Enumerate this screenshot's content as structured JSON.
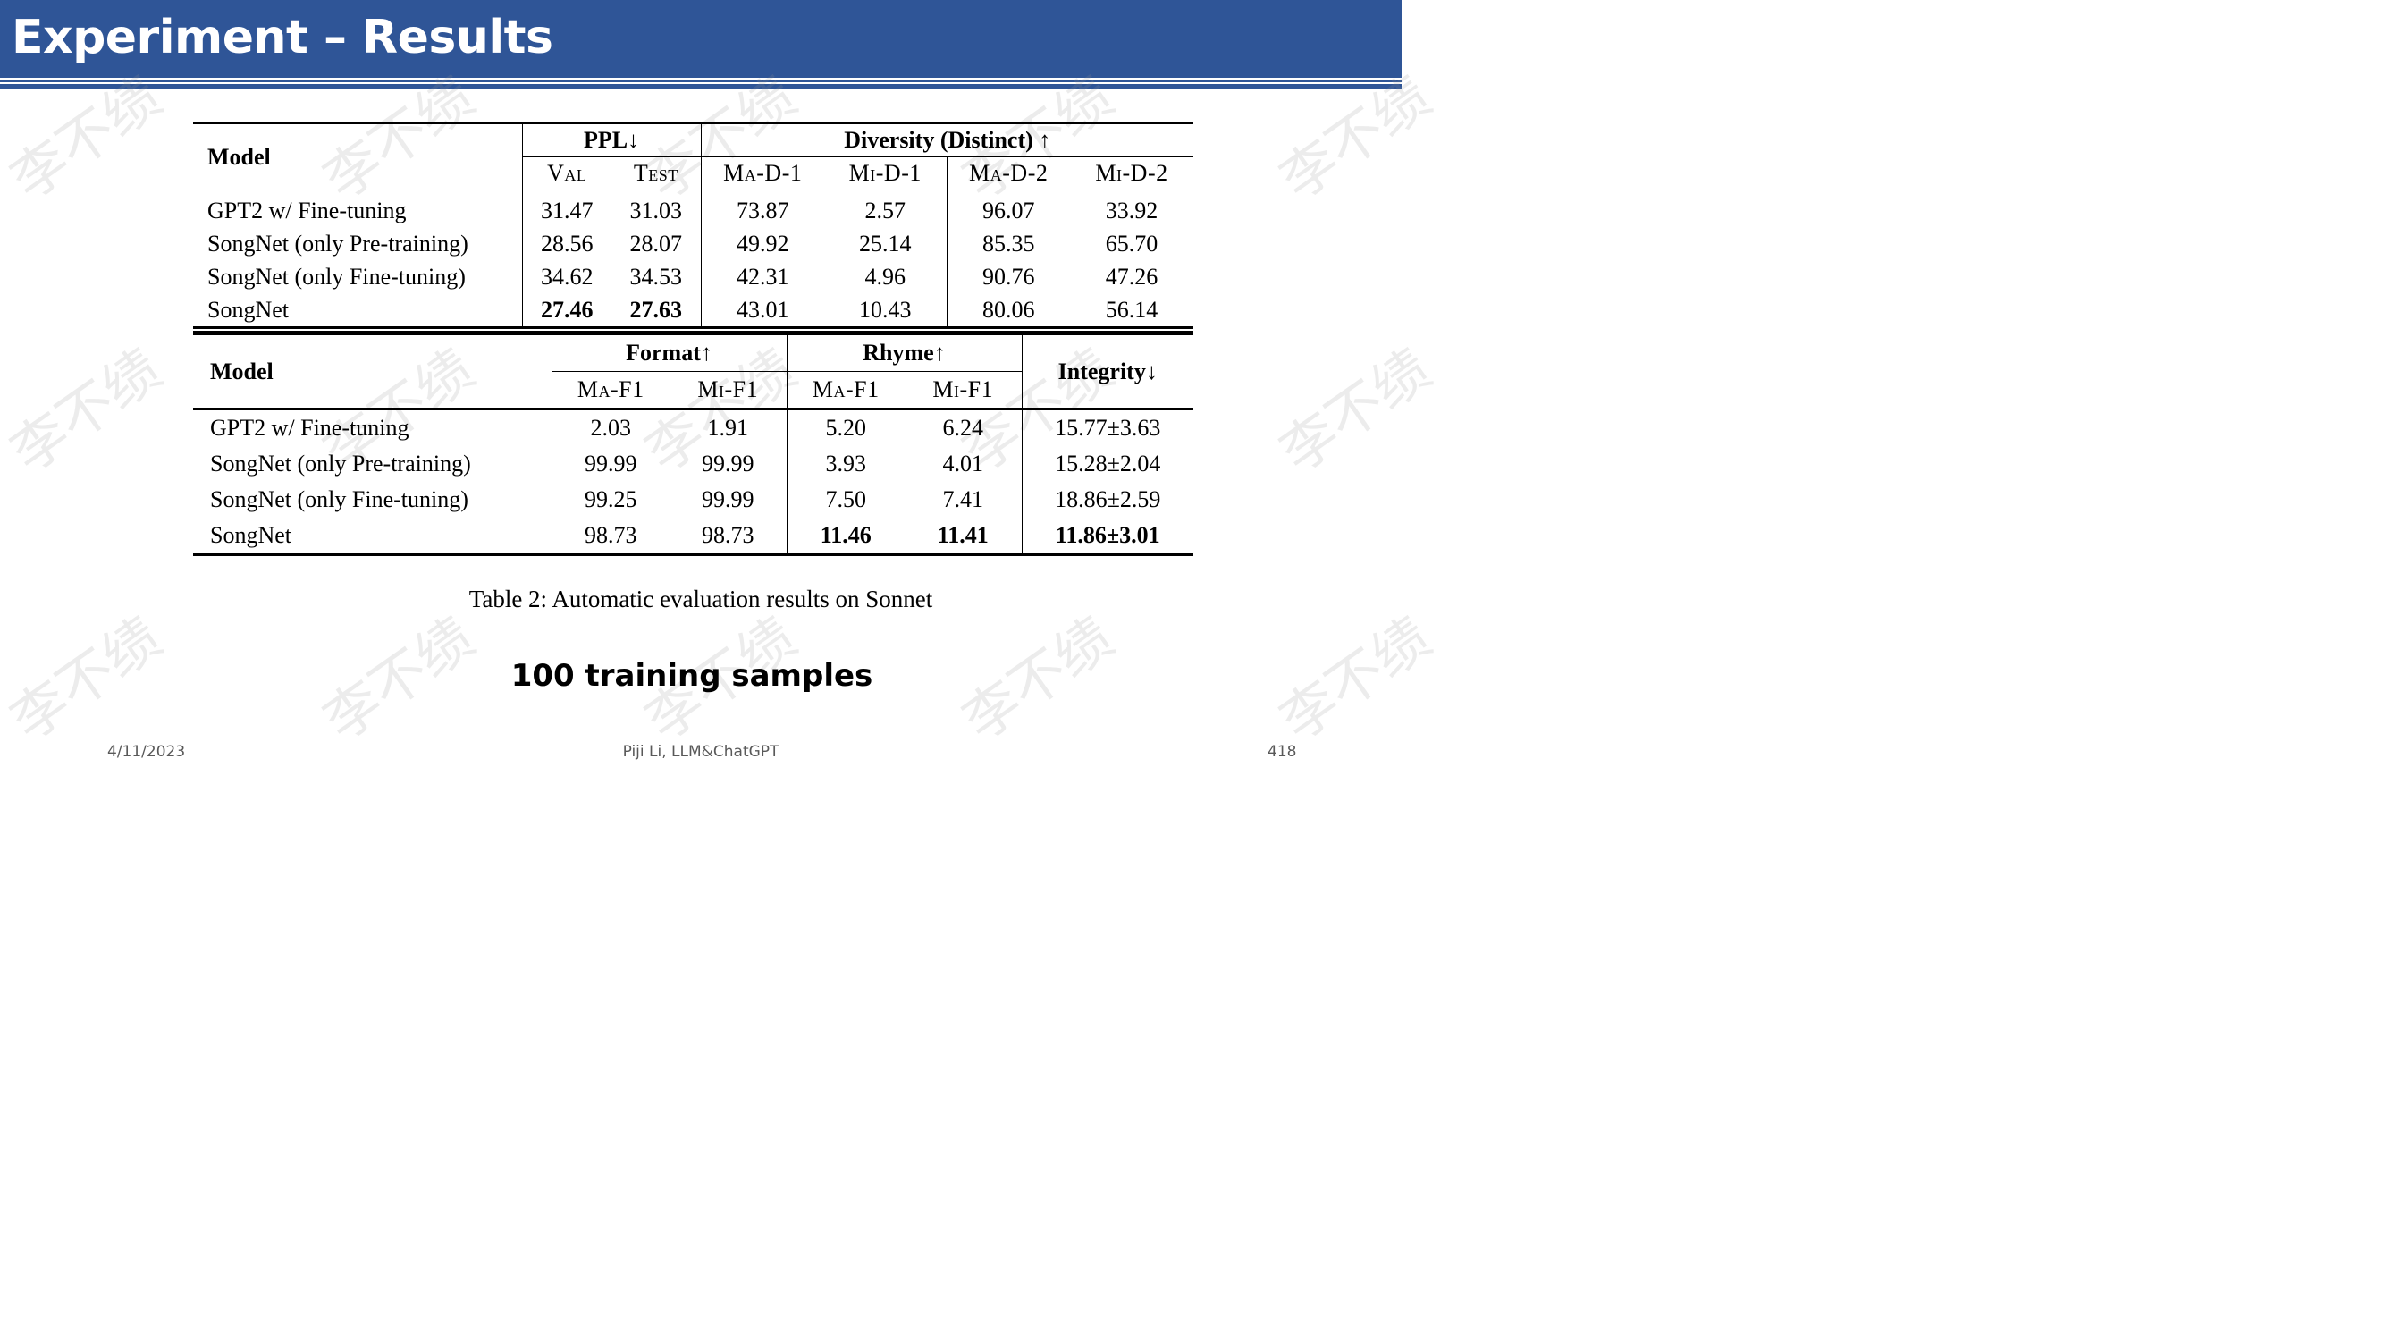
{
  "slide": {
    "title": "Experiment – Results",
    "note": "100 training samples",
    "caption": "Table 2:  Automatic evaluation results on Sonnet",
    "footer": {
      "date": "4/11/2023",
      "center": "Piji Li, LLM&ChatGPT",
      "page": "418"
    },
    "watermark": "李不续"
  },
  "table1": {
    "model_header": "Model",
    "ppl_header": "PPL↓",
    "diversity_header": "Diversity (Distinct) ↑",
    "sub_headers": [
      "Val",
      "Test",
      "Ma-D-1",
      "Mi-D-1",
      "Ma-D-2",
      "Mi-D-2"
    ],
    "rows": [
      {
        "model": "GPT2 w/ Fine-tuning",
        "values": [
          "31.47",
          "31.03",
          "73.87",
          "2.57",
          "96.07",
          "33.92"
        ]
      },
      {
        "model": "SongNet (only Pre-training)",
        "values": [
          "28.56",
          "28.07",
          "49.92",
          "25.14",
          "85.35",
          "65.70"
        ]
      },
      {
        "model": "SongNet (only Fine-tuning)",
        "values": [
          "34.62",
          "34.53",
          "42.31",
          "4.96",
          "90.76",
          "47.26"
        ]
      },
      {
        "model": "SongNet",
        "values": [
          "27.46",
          "27.63",
          "43.01",
          "10.43",
          "80.06",
          "56.14"
        ]
      }
    ]
  },
  "table2": {
    "model_header": "Model",
    "format_header": "Format↑",
    "rhyme_header": "Rhyme↑",
    "integrity_header": "Integrity↓",
    "sub_headers": [
      "Ma-F1",
      "Mi-F1",
      "Ma-F1",
      "Mi-F1"
    ],
    "rows": [
      {
        "model": "GPT2 w/ Fine-tuning",
        "values": [
          "2.03",
          "1.91",
          "5.20",
          "6.24",
          "15.77±3.63"
        ]
      },
      {
        "model": "SongNet (only Pre-training)",
        "values": [
          "99.99",
          "99.99",
          "3.93",
          "4.01",
          "15.28±2.04"
        ]
      },
      {
        "model": "SongNet (only Fine-tuning)",
        "values": [
          "99.25",
          "99.99",
          "7.50",
          "7.41",
          "18.86±2.59"
        ]
      },
      {
        "model": "SongNet",
        "values": [
          "98.73",
          "98.73",
          "11.46",
          "11.41",
          "11.86±3.01"
        ]
      }
    ]
  }
}
